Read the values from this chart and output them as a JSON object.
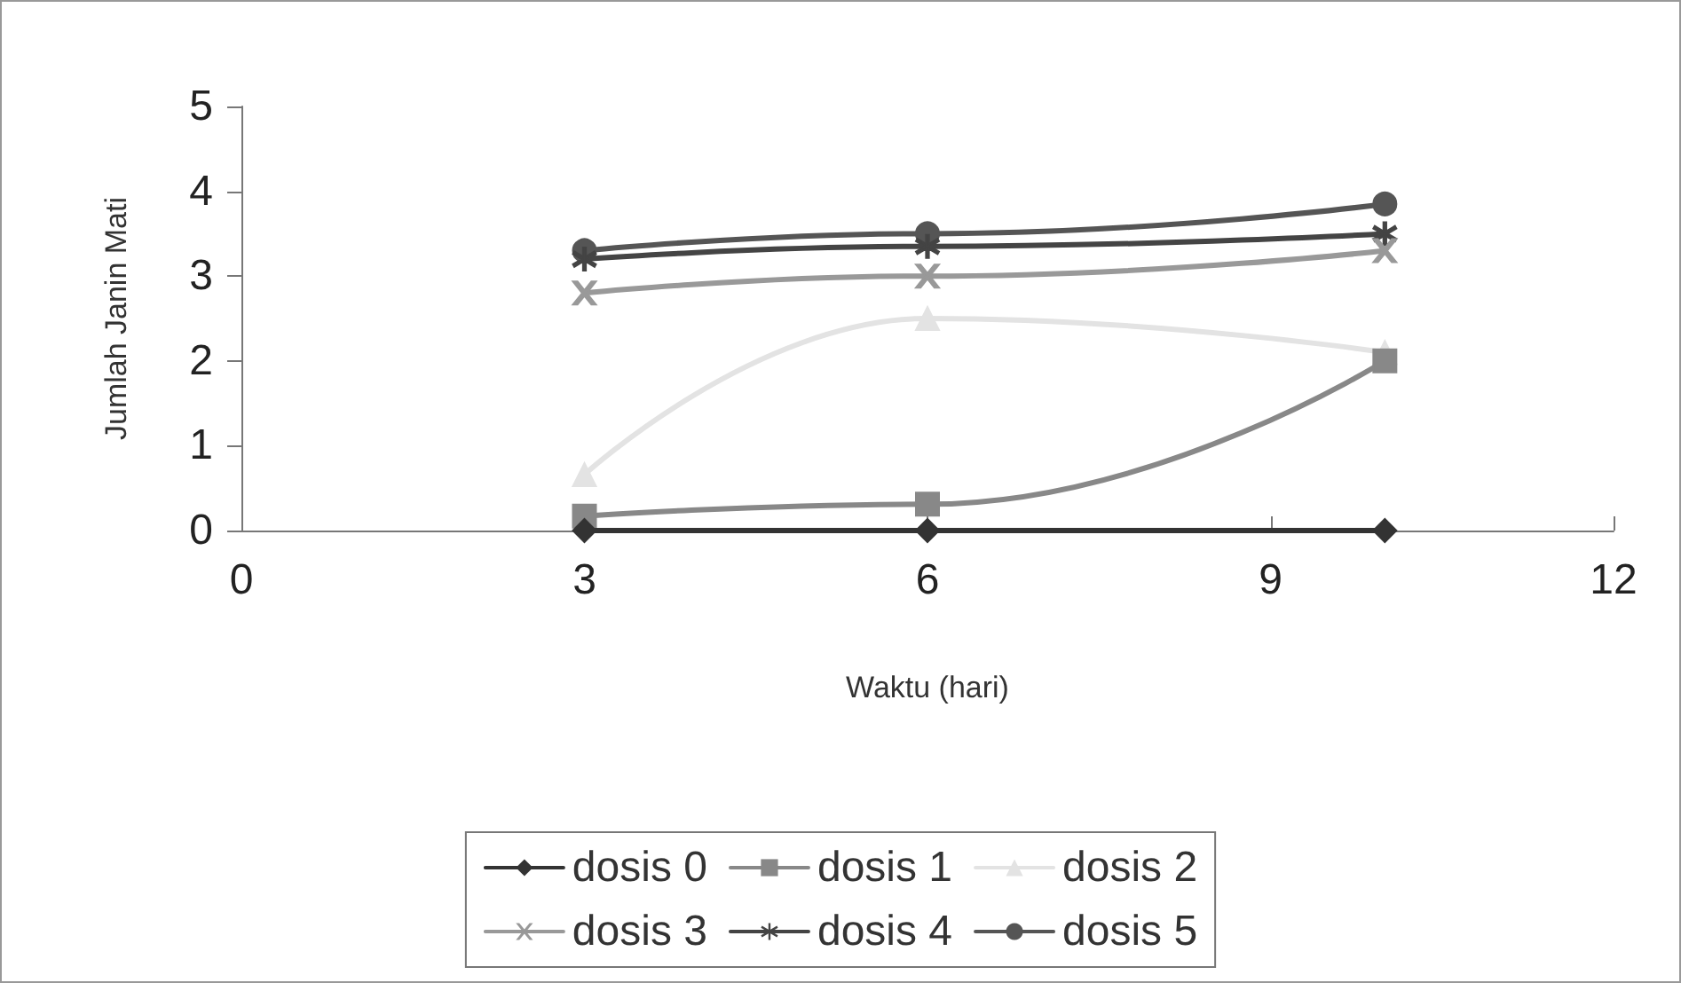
{
  "chart_data": {
    "type": "line",
    "xlabel": "Waktu (hari)",
    "ylabel": "Jumlah Janin Mati",
    "x": [
      3,
      6,
      10
    ],
    "series": [
      {
        "name": "dosis 0",
        "color": "#333333",
        "marker": "diamond",
        "values": [
          0,
          0,
          0
        ]
      },
      {
        "name": "dosis 1",
        "color": "#888888",
        "marker": "square",
        "values": [
          0.17,
          0.31,
          2.0
        ]
      },
      {
        "name": "dosis 2",
        "color": "#e3e3e3",
        "marker": "triangle",
        "values": [
          0.66,
          2.5,
          2.1
        ]
      },
      {
        "name": "dosis 3",
        "color": "#999999",
        "marker": "cross",
        "values": [
          2.8,
          3.0,
          3.3
        ]
      },
      {
        "name": "dosis 4",
        "color": "#444444",
        "marker": "star",
        "values": [
          3.2,
          3.35,
          3.5
        ]
      },
      {
        "name": "dosis 5",
        "color": "#555555",
        "marker": "circle",
        "values": [
          3.3,
          3.5,
          3.85
        ]
      }
    ],
    "xlim": [
      0,
      12
    ],
    "xticks": [
      0,
      3,
      6,
      9,
      12
    ],
    "ylim": [
      0,
      5
    ],
    "yticks": [
      0,
      1,
      2,
      3,
      4,
      5
    ],
    "grid": false,
    "legend": "bottom"
  }
}
